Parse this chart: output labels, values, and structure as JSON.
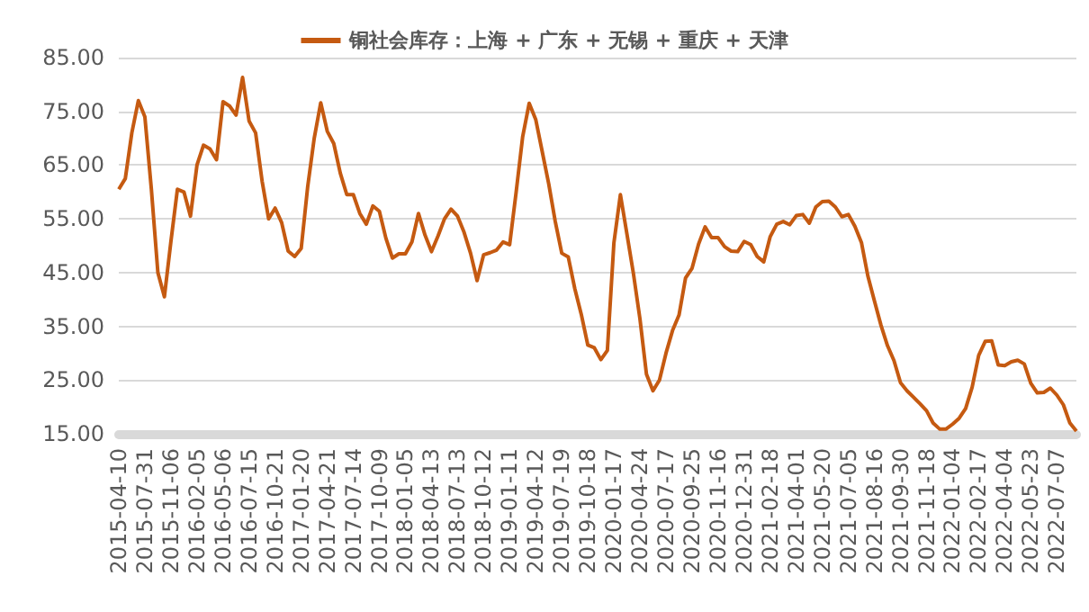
{
  "chart_data": {
    "type": "line",
    "categories": [
      "2015-04-10",
      null,
      null,
      null,
      "2015-07-31",
      null,
      null,
      null,
      "2015-11-06",
      null,
      null,
      null,
      "2016-02-05",
      null,
      null,
      null,
      "2016-05-06",
      null,
      null,
      null,
      "2016-07-15",
      null,
      null,
      null,
      "2016-10-21",
      null,
      null,
      null,
      "2017-01-20",
      null,
      null,
      null,
      "2017-04-21",
      null,
      null,
      null,
      "2017-07-14",
      null,
      null,
      null,
      "2017-10-09",
      null,
      null,
      null,
      "2018-01-05",
      null,
      null,
      null,
      "2018-04-13",
      null,
      null,
      null,
      "2018-07-13",
      null,
      null,
      null,
      "2018-10-12",
      null,
      null,
      null,
      "2019-01-11",
      null,
      null,
      null,
      "2019-04-12",
      null,
      null,
      null,
      "2019-07-19",
      null,
      null,
      null,
      "2019-10-18",
      null,
      null,
      null,
      "2020-01-17",
      null,
      null,
      null,
      "2020-04-24",
      null,
      null,
      null,
      "2020-07-17",
      null,
      null,
      null,
      "2020-09-25",
      null,
      null,
      null,
      "2020-11-16",
      null,
      null,
      null,
      "2020-12-31",
      null,
      null,
      null,
      "2021-02-18",
      null,
      null,
      null,
      "2021-04-01",
      null,
      null,
      null,
      "2021-05-20",
      null,
      null,
      null,
      "2021-07-05",
      null,
      null,
      null,
      "2021-08-16",
      null,
      null,
      null,
      "2021-09-30",
      null,
      null,
      null,
      "2021-11-18",
      null,
      null,
      null,
      "2022-01-04",
      null,
      null,
      null,
      "2022-02-17",
      null,
      null,
      null,
      "2022-04-04",
      null,
      null,
      null,
      "2022-05-23",
      null,
      null,
      null,
      "2022-07-07",
      null,
      null,
      null
    ],
    "series": [
      {
        "name": "铜社会库存：上海 + 广东 + 无锡 + 重庆 + 天津",
        "color": "#c55a11",
        "values": [
          60.5,
          62.5,
          71,
          77,
          74,
          60.5,
          45,
          40.5,
          50.8,
          60.5,
          60,
          55.5,
          65,
          68.7,
          68,
          66,
          76.8,
          76,
          74.3,
          81.3,
          73.2,
          71,
          62,
          55,
          57,
          54.3,
          49,
          48,
          49.5,
          61,
          70,
          76.6,
          71.3,
          69,
          63.5,
          59.5,
          59.5,
          56,
          54,
          57.4,
          56.4,
          51.4,
          47.7,
          48.5,
          48.5,
          50.7,
          56,
          52,
          48.9,
          51.8,
          55,
          56.8,
          55.5,
          52.5,
          48.6,
          43.5,
          48.3,
          48.7,
          49.2,
          50.7,
          50.2,
          60,
          70.3,
          76.5,
          73.5,
          67.5,
          61.5,
          54.5,
          48.6,
          47.9,
          42,
          37.2,
          31.5,
          31,
          28.8,
          30.5,
          50.5,
          59.5,
          52.2,
          44.8,
          36.4,
          26.1,
          23,
          25,
          30,
          34.2,
          37.1,
          44,
          45.8,
          50.3,
          53.5,
          51.5,
          51.5,
          49.8,
          49,
          48.9,
          50.8,
          50.2,
          48,
          47,
          51.7,
          54,
          54.5,
          53.9,
          55.6,
          55.8,
          54.2,
          57.2,
          58.2,
          58.3,
          57.2,
          55.4,
          55.8,
          53.6,
          50.6,
          44.3,
          39.7,
          35.2,
          31.4,
          28.6,
          24.5,
          23,
          21.8,
          20.6,
          19.3,
          17,
          15.9,
          15.9,
          16.8,
          17.9,
          19.7,
          23.7,
          29.6,
          32.2,
          32.3,
          27.8,
          27.7,
          28.4,
          28.7,
          28,
          24.4,
          22.6,
          22.7,
          23.5,
          22.2,
          20.4,
          17,
          15.5
        ]
      }
    ],
    "ylim": [
      15,
      85
    ],
    "yticks": [
      {
        "value": 15,
        "label": "15.00"
      },
      {
        "value": 25,
        "label": "25.00"
      },
      {
        "value": 35,
        "label": "35.00"
      },
      {
        "value": 45,
        "label": "45.00"
      },
      {
        "value": 55,
        "label": "55.00"
      },
      {
        "value": 65,
        "label": "65.00"
      },
      {
        "value": 75,
        "label": "75.00"
      },
      {
        "value": 85,
        "label": "85.00"
      }
    ],
    "grid": "y",
    "legend": "top",
    "marker": "none",
    "line_style": "solid"
  }
}
